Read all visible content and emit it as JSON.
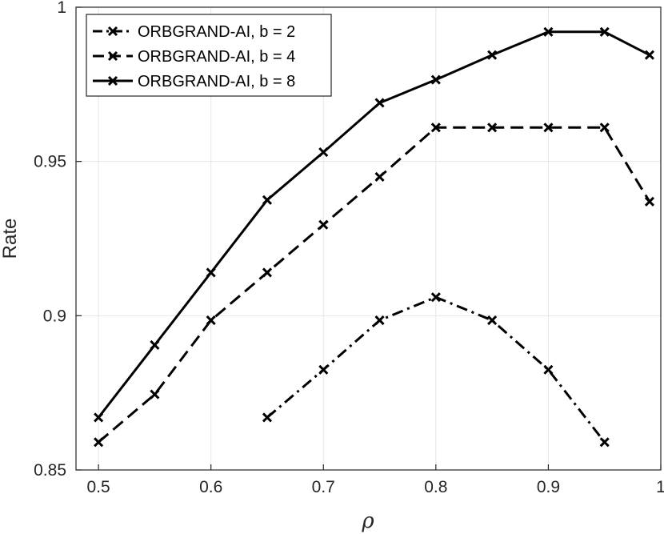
{
  "chart_data": {
    "type": "line",
    "title": "",
    "xlabel": "ρ",
    "ylabel": "Rate",
    "xlim": [
      0.48,
      1.0
    ],
    "ylim": [
      0.85,
      1.0
    ],
    "x_ticks": [
      0.5,
      0.6,
      0.7,
      0.8,
      0.9,
      1.0
    ],
    "x_tick_labels": [
      "0.5",
      "0.6",
      "0.7",
      "0.8",
      "0.9",
      "1"
    ],
    "y_ticks": [
      0.85,
      0.9,
      0.95,
      1.0
    ],
    "y_tick_labels": [
      "0.85",
      "0.9",
      "0.95",
      "1"
    ],
    "grid": true,
    "legend_position": "top-left",
    "series": [
      {
        "name": "ORBGRAND-AI, b = 2",
        "dash": "dashdot",
        "marker": "x",
        "color": "#000000",
        "x": [
          0.65,
          0.7,
          0.75,
          0.8,
          0.85,
          0.9,
          0.95
        ],
        "y": [
          0.867,
          0.8825,
          0.8985,
          0.906,
          0.8985,
          0.8825,
          0.859
        ]
      },
      {
        "name": "ORBGRAND-AI, b = 4",
        "dash": "dashed",
        "marker": "x",
        "color": "#000000",
        "x": [
          0.5,
          0.55,
          0.6,
          0.65,
          0.7,
          0.75,
          0.8,
          0.85,
          0.9,
          0.95,
          0.99
        ],
        "y": [
          0.859,
          0.8745,
          0.8985,
          0.914,
          0.9295,
          0.945,
          0.961,
          0.961,
          0.961,
          0.961,
          0.937
        ]
      },
      {
        "name": "ORBGRAND-AI, b = 8",
        "dash": "solid",
        "marker": "x",
        "color": "#000000",
        "x": [
          0.5,
          0.55,
          0.6,
          0.65,
          0.7,
          0.75,
          0.8,
          0.85,
          0.9,
          0.95,
          0.99
        ],
        "y": [
          0.867,
          0.8905,
          0.914,
          0.9375,
          0.953,
          0.969,
          0.9765,
          0.9845,
          0.992,
          0.992,
          0.9845
        ]
      }
    ]
  }
}
